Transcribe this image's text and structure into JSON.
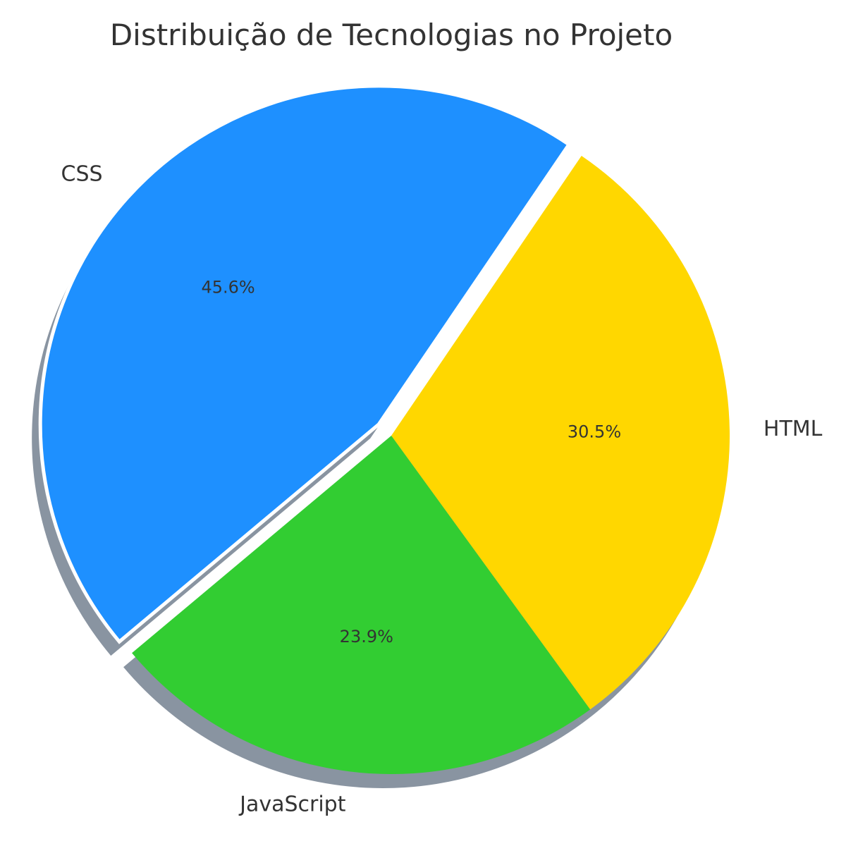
{
  "chart_data": {
    "type": "pie",
    "title": "Distribuição de Tecnologias no Projeto",
    "slices": [
      {
        "label": "HTML",
        "value": 30.5,
        "pct_label": "30.5%",
        "color": "#FFD700",
        "explode": 0
      },
      {
        "label": "CSS",
        "value": 45.6,
        "pct_label": "45.6%",
        "color": "#1E90FF",
        "explode": 0.05
      },
      {
        "label": "JavaScript",
        "value": 23.9,
        "pct_label": "23.9%",
        "color": "#32CD32",
        "explode": 0
      }
    ],
    "start_angle_deg": -54,
    "direction": "counterclockwise",
    "shadow": true
  }
}
